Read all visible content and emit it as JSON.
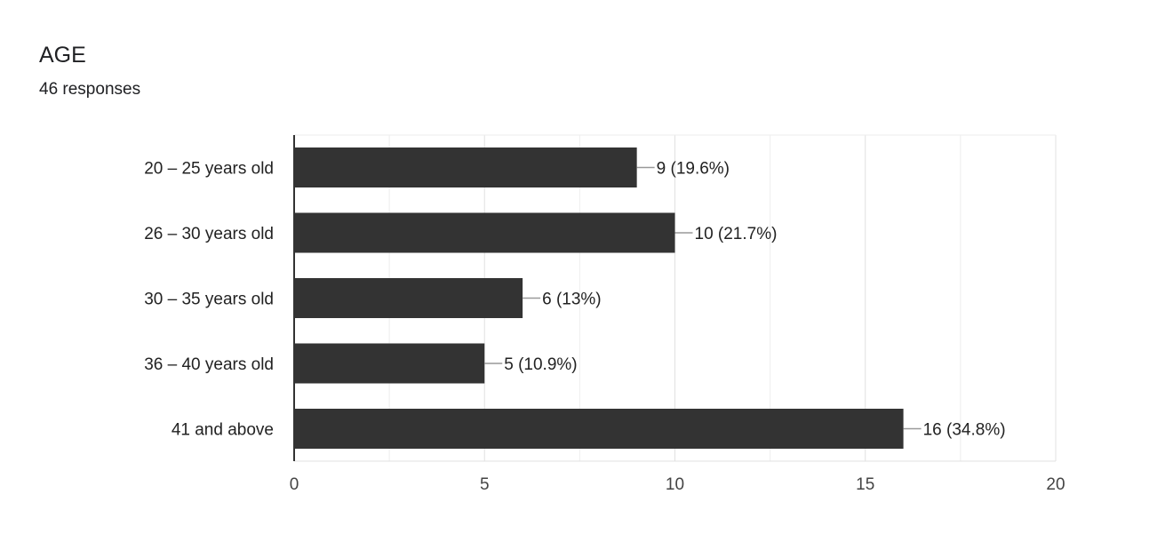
{
  "header": {
    "title": "AGE",
    "responses": "46 responses"
  },
  "chart_data": {
    "type": "bar",
    "orientation": "horizontal",
    "categories": [
      "20 – 25 years old",
      "26 – 30 years old",
      "30 – 35 years old",
      "36 – 40 years old",
      "41 and above"
    ],
    "values": [
      9,
      10,
      6,
      5,
      16
    ],
    "data_labels": [
      "9 (19.6%)",
      "10 (21.7%)",
      "6 (13%)",
      "5 (10.9%)",
      "16 (34.8%)"
    ],
    "xlim": [
      0,
      20
    ],
    "x_ticks": [
      0,
      5,
      10,
      15,
      20
    ],
    "grid": true,
    "bar_color": "#333333",
    "xlabel": "",
    "ylabel": ""
  }
}
